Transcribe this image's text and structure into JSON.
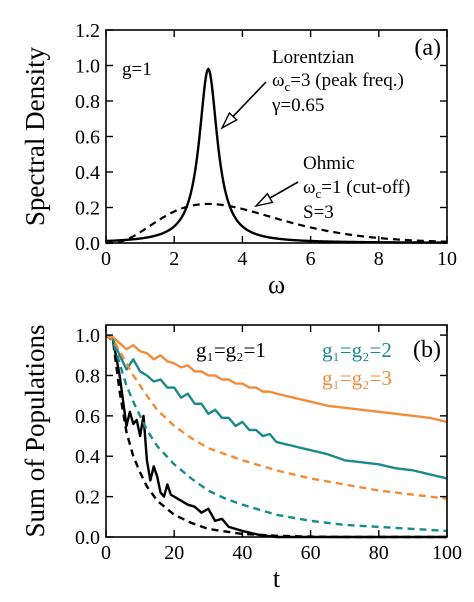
{
  "chart_data": [
    {
      "type": "line",
      "panel_label": "(a)",
      "xlabel": "ω",
      "ylabel": "Spectral Density",
      "xlim": [
        0,
        10
      ],
      "ylim": [
        0,
        1.2
      ],
      "xticks": [
        "0",
        "2",
        "4",
        "6",
        "8",
        "10"
      ],
      "yticks": [
        "0.0",
        "0.2",
        "0.4",
        "0.6",
        "0.8",
        "1.0",
        "1.2"
      ],
      "annotation_g": "g=1",
      "lorentzian_text": [
        "Lorentzian",
        "ω_c=3 (peak freq.)",
        "γ=0.65"
      ],
      "ohmic_text": [
        "Ohmic",
        "ω_c=1 (cut-off)",
        "S=3"
      ],
      "series": [
        {
          "name": "Lorentzian",
          "style": "solid",
          "color": "#000000",
          "params": {
            "omega_c": 3,
            "gamma": 0.65
          },
          "peak": [
            3,
            0.98
          ]
        },
        {
          "name": "Ohmic",
          "style": "dashed",
          "color": "#000000",
          "params": {
            "omega_c": 1,
            "S": 3
          },
          "peak": [
            3,
            0.22
          ]
        }
      ]
    },
    {
      "type": "line",
      "panel_label": "(b)",
      "xlabel": "t",
      "ylabel": "Sum of Populations",
      "xlim": [
        0,
        100
      ],
      "ylim": [
        0,
        1.05
      ],
      "xticks": [
        "0",
        "20",
        "40",
        "60",
        "80",
        "100"
      ],
      "yticks": [
        "0.0",
        "0.2",
        "0.4",
        "0.6",
        "0.8",
        "1.0"
      ],
      "labels": [
        {
          "text": "g₁=g₂=1",
          "color": "#000000"
        },
        {
          "text": "g₁=g₂=2",
          "color": "#1a8a8a"
        },
        {
          "text": "g₁=g₂=3",
          "color": "#f28c38"
        }
      ],
      "series": [
        {
          "group": "g1=g2=1",
          "style": "solid",
          "color": "#000000",
          "x": [
            0,
            2,
            4,
            6,
            7,
            8,
            9,
            10,
            11,
            12,
            13,
            14,
            15,
            16,
            17,
            18,
            19,
            20,
            22,
            24,
            26,
            28,
            30,
            32,
            34,
            36,
            40,
            45,
            50,
            60,
            70,
            80,
            90,
            100
          ],
          "y": [
            1.0,
            0.98,
            0.8,
            0.55,
            0.62,
            0.56,
            0.58,
            0.5,
            0.6,
            0.38,
            0.28,
            0.35,
            0.3,
            0.22,
            0.2,
            0.26,
            0.21,
            0.2,
            0.18,
            0.16,
            0.15,
            0.12,
            0.14,
            0.08,
            0.09,
            0.05,
            0.03,
            0.01,
            0.0,
            0.0,
            0.0,
            0.0,
            0.0,
            0.0
          ]
        },
        {
          "group": "g1=g2=1",
          "style": "dashed",
          "color": "#000000",
          "x": [
            0,
            2,
            4,
            6,
            8,
            10,
            12,
            15,
            20,
            25,
            30,
            40,
            50,
            60,
            70,
            80,
            90,
            100
          ],
          "y": [
            1.0,
            0.98,
            0.72,
            0.52,
            0.4,
            0.32,
            0.25,
            0.18,
            0.11,
            0.07,
            0.04,
            0.015,
            0.006,
            0.002,
            0.0,
            0.0,
            0.0,
            0.0
          ]
        },
        {
          "group": "g1=g2=2",
          "style": "solid",
          "color": "#1a8a8a",
          "x": [
            0,
            2,
            4,
            6,
            8,
            10,
            12,
            14,
            16,
            18,
            20,
            22,
            24,
            26,
            28,
            30,
            32,
            34,
            36,
            38,
            40,
            42,
            44,
            46,
            48,
            50,
            55,
            60,
            65,
            70,
            75,
            80,
            85,
            90,
            95,
            100
          ],
          "y": [
            1.0,
            0.98,
            0.9,
            0.83,
            0.88,
            0.82,
            0.8,
            0.77,
            0.78,
            0.74,
            0.74,
            0.69,
            0.71,
            0.66,
            0.66,
            0.61,
            0.63,
            0.59,
            0.59,
            0.55,
            0.57,
            0.53,
            0.53,
            0.5,
            0.51,
            0.47,
            0.45,
            0.43,
            0.41,
            0.38,
            0.37,
            0.36,
            0.34,
            0.33,
            0.31,
            0.29
          ]
        },
        {
          "group": "g1=g2=2",
          "style": "dashed",
          "color": "#1a8a8a",
          "x": [
            0,
            2,
            4,
            6,
            8,
            10,
            12,
            15,
            20,
            25,
            30,
            35,
            40,
            50,
            60,
            70,
            80,
            90,
            100
          ],
          "y": [
            1.0,
            0.97,
            0.86,
            0.75,
            0.67,
            0.6,
            0.53,
            0.45,
            0.36,
            0.29,
            0.23,
            0.19,
            0.16,
            0.11,
            0.08,
            0.06,
            0.05,
            0.04,
            0.03
          ]
        },
        {
          "group": "g1=g2=3",
          "style": "solid",
          "color": "#f28c38",
          "x": [
            0,
            2,
            4,
            6,
            8,
            10,
            12,
            14,
            16,
            18,
            20,
            22,
            24,
            26,
            28,
            30,
            32,
            34,
            36,
            38,
            40,
            42,
            44,
            46,
            48,
            50,
            55,
            60,
            65,
            70,
            75,
            80,
            85,
            90,
            95,
            100
          ],
          "y": [
            1.0,
            0.99,
            0.96,
            0.93,
            0.95,
            0.92,
            0.91,
            0.88,
            0.9,
            0.87,
            0.86,
            0.84,
            0.85,
            0.82,
            0.82,
            0.8,
            0.8,
            0.78,
            0.78,
            0.76,
            0.76,
            0.74,
            0.74,
            0.72,
            0.72,
            0.71,
            0.69,
            0.67,
            0.65,
            0.64,
            0.63,
            0.62,
            0.61,
            0.6,
            0.59,
            0.57
          ]
        },
        {
          "group": "g1=g2=3",
          "style": "dashed",
          "color": "#f28c38",
          "x": [
            0,
            2,
            4,
            6,
            8,
            10,
            12,
            15,
            20,
            25,
            30,
            35,
            40,
            50,
            60,
            70,
            80,
            90,
            100
          ],
          "y": [
            1.0,
            0.98,
            0.92,
            0.86,
            0.8,
            0.75,
            0.7,
            0.63,
            0.55,
            0.49,
            0.44,
            0.41,
            0.38,
            0.33,
            0.29,
            0.26,
            0.23,
            0.21,
            0.19
          ]
        }
      ]
    }
  ]
}
